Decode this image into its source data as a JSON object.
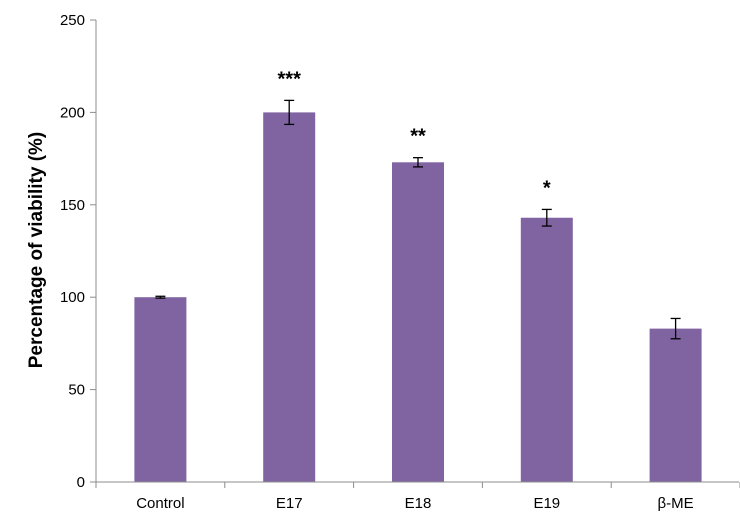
{
  "chart_data": {
    "type": "bar",
    "title": "",
    "xlabel": "",
    "ylabel": "Percentage of viability (%)",
    "categories": [
      "Control",
      "E17",
      "E18",
      "E19",
      "β-ME"
    ],
    "values": [
      100,
      200,
      173,
      143,
      83
    ],
    "errors": [
      0.5,
      6.5,
      2.5,
      4.5,
      5.5
    ],
    "annotations": [
      "",
      "***",
      "**",
      "*",
      ""
    ],
    "ylim": [
      0,
      250
    ],
    "yticks": [
      0,
      50,
      100,
      150,
      200,
      250
    ],
    "bar_color": "#8064A2",
    "grid": false,
    "legend": "none"
  }
}
